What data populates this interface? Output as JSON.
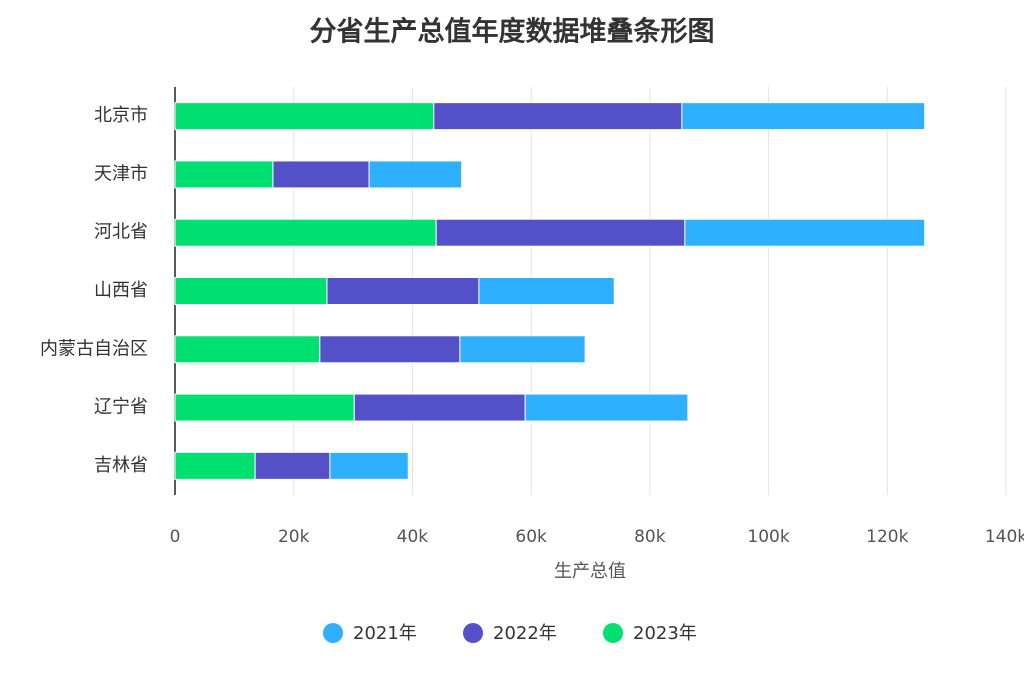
{
  "chart_data": {
    "type": "stacked_bar_horizontal",
    "title": "分省生产总值年度数据堆叠条形图",
    "x_label": "生产总值",
    "categories": [
      "北京市",
      "天津市",
      "河北省",
      "山西省",
      "内蒙古自治区",
      "辽宁省",
      "吉林省"
    ],
    "series": [
      {
        "name": "2021年",
        "color": "#2eb0ff",
        "values": [
          40900,
          15600,
          40400,
          22800,
          21100,
          27400,
          13200
        ]
      },
      {
        "name": "2022年",
        "color": "#5450c8",
        "values": [
          41800,
          16200,
          41900,
          25600,
          23600,
          28800,
          12600
        ]
      },
      {
        "name": "2023年",
        "color": "#00e070",
        "values": [
          43600,
          16500,
          44000,
          25600,
          24400,
          30200,
          13500
        ]
      }
    ],
    "xlim": [
      0,
      140000
    ],
    "xticks": [
      0,
      {
        "value": 20000,
        "label": "20k"
      },
      {
        "value": 40000,
        "label": "40k"
      },
      {
        "value": 60000,
        "label": "60k"
      },
      {
        "value": 80000,
        "label": "80k"
      },
      {
        "value": 100000,
        "label": "100k"
      },
      {
        "value": 120000,
        "label": "120k"
      },
      {
        "value": 140000,
        "label": "140k"
      }
    ],
    "grid": true,
    "legend": "bottom"
  }
}
